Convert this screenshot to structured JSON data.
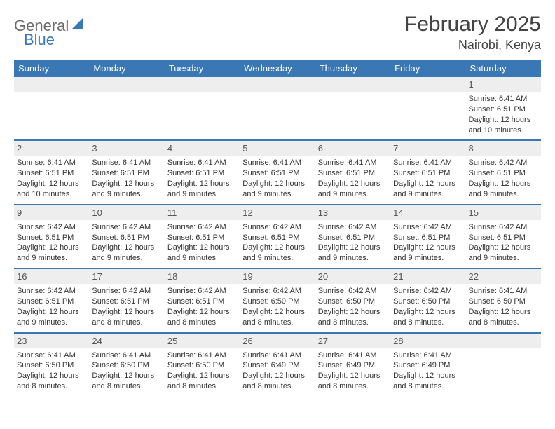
{
  "logo": {
    "part1": "General",
    "part2": "Blue"
  },
  "title": "February 2025",
  "location": "Nairobi, Kenya",
  "header_bg": "#3a78b5",
  "day_bg": "#eeeeee",
  "text_color": "#333333",
  "day_names": [
    "Sunday",
    "Monday",
    "Tuesday",
    "Wednesday",
    "Thursday",
    "Friday",
    "Saturday"
  ],
  "weeks": [
    [
      {
        "n": "",
        "sr": "",
        "ss": "",
        "dl": ""
      },
      {
        "n": "",
        "sr": "",
        "ss": "",
        "dl": ""
      },
      {
        "n": "",
        "sr": "",
        "ss": "",
        "dl": ""
      },
      {
        "n": "",
        "sr": "",
        "ss": "",
        "dl": ""
      },
      {
        "n": "",
        "sr": "",
        "ss": "",
        "dl": ""
      },
      {
        "n": "",
        "sr": "",
        "ss": "",
        "dl": ""
      },
      {
        "n": "1",
        "sr": "Sunrise: 6:41 AM",
        "ss": "Sunset: 6:51 PM",
        "dl": "Daylight: 12 hours and 10 minutes."
      }
    ],
    [
      {
        "n": "2",
        "sr": "Sunrise: 6:41 AM",
        "ss": "Sunset: 6:51 PM",
        "dl": "Daylight: 12 hours and 10 minutes."
      },
      {
        "n": "3",
        "sr": "Sunrise: 6:41 AM",
        "ss": "Sunset: 6:51 PM",
        "dl": "Daylight: 12 hours and 9 minutes."
      },
      {
        "n": "4",
        "sr": "Sunrise: 6:41 AM",
        "ss": "Sunset: 6:51 PM",
        "dl": "Daylight: 12 hours and 9 minutes."
      },
      {
        "n": "5",
        "sr": "Sunrise: 6:41 AM",
        "ss": "Sunset: 6:51 PM",
        "dl": "Daylight: 12 hours and 9 minutes."
      },
      {
        "n": "6",
        "sr": "Sunrise: 6:41 AM",
        "ss": "Sunset: 6:51 PM",
        "dl": "Daylight: 12 hours and 9 minutes."
      },
      {
        "n": "7",
        "sr": "Sunrise: 6:41 AM",
        "ss": "Sunset: 6:51 PM",
        "dl": "Daylight: 12 hours and 9 minutes."
      },
      {
        "n": "8",
        "sr": "Sunrise: 6:42 AM",
        "ss": "Sunset: 6:51 PM",
        "dl": "Daylight: 12 hours and 9 minutes."
      }
    ],
    [
      {
        "n": "9",
        "sr": "Sunrise: 6:42 AM",
        "ss": "Sunset: 6:51 PM",
        "dl": "Daylight: 12 hours and 9 minutes."
      },
      {
        "n": "10",
        "sr": "Sunrise: 6:42 AM",
        "ss": "Sunset: 6:51 PM",
        "dl": "Daylight: 12 hours and 9 minutes."
      },
      {
        "n": "11",
        "sr": "Sunrise: 6:42 AM",
        "ss": "Sunset: 6:51 PM",
        "dl": "Daylight: 12 hours and 9 minutes."
      },
      {
        "n": "12",
        "sr": "Sunrise: 6:42 AM",
        "ss": "Sunset: 6:51 PM",
        "dl": "Daylight: 12 hours and 9 minutes."
      },
      {
        "n": "13",
        "sr": "Sunrise: 6:42 AM",
        "ss": "Sunset: 6:51 PM",
        "dl": "Daylight: 12 hours and 9 minutes."
      },
      {
        "n": "14",
        "sr": "Sunrise: 6:42 AM",
        "ss": "Sunset: 6:51 PM",
        "dl": "Daylight: 12 hours and 9 minutes."
      },
      {
        "n": "15",
        "sr": "Sunrise: 6:42 AM",
        "ss": "Sunset: 6:51 PM",
        "dl": "Daylight: 12 hours and 9 minutes."
      }
    ],
    [
      {
        "n": "16",
        "sr": "Sunrise: 6:42 AM",
        "ss": "Sunset: 6:51 PM",
        "dl": "Daylight: 12 hours and 9 minutes."
      },
      {
        "n": "17",
        "sr": "Sunrise: 6:42 AM",
        "ss": "Sunset: 6:51 PM",
        "dl": "Daylight: 12 hours and 8 minutes."
      },
      {
        "n": "18",
        "sr": "Sunrise: 6:42 AM",
        "ss": "Sunset: 6:51 PM",
        "dl": "Daylight: 12 hours and 8 minutes."
      },
      {
        "n": "19",
        "sr": "Sunrise: 6:42 AM",
        "ss": "Sunset: 6:50 PM",
        "dl": "Daylight: 12 hours and 8 minutes."
      },
      {
        "n": "20",
        "sr": "Sunrise: 6:42 AM",
        "ss": "Sunset: 6:50 PM",
        "dl": "Daylight: 12 hours and 8 minutes."
      },
      {
        "n": "21",
        "sr": "Sunrise: 6:42 AM",
        "ss": "Sunset: 6:50 PM",
        "dl": "Daylight: 12 hours and 8 minutes."
      },
      {
        "n": "22",
        "sr": "Sunrise: 6:41 AM",
        "ss": "Sunset: 6:50 PM",
        "dl": "Daylight: 12 hours and 8 minutes."
      }
    ],
    [
      {
        "n": "23",
        "sr": "Sunrise: 6:41 AM",
        "ss": "Sunset: 6:50 PM",
        "dl": "Daylight: 12 hours and 8 minutes."
      },
      {
        "n": "24",
        "sr": "Sunrise: 6:41 AM",
        "ss": "Sunset: 6:50 PM",
        "dl": "Daylight: 12 hours and 8 minutes."
      },
      {
        "n": "25",
        "sr": "Sunrise: 6:41 AM",
        "ss": "Sunset: 6:50 PM",
        "dl": "Daylight: 12 hours and 8 minutes."
      },
      {
        "n": "26",
        "sr": "Sunrise: 6:41 AM",
        "ss": "Sunset: 6:49 PM",
        "dl": "Daylight: 12 hours and 8 minutes."
      },
      {
        "n": "27",
        "sr": "Sunrise: 6:41 AM",
        "ss": "Sunset: 6:49 PM",
        "dl": "Daylight: 12 hours and 8 minutes."
      },
      {
        "n": "28",
        "sr": "Sunrise: 6:41 AM",
        "ss": "Sunset: 6:49 PM",
        "dl": "Daylight: 12 hours and 8 minutes."
      },
      {
        "n": "",
        "sr": "",
        "ss": "",
        "dl": ""
      }
    ]
  ]
}
